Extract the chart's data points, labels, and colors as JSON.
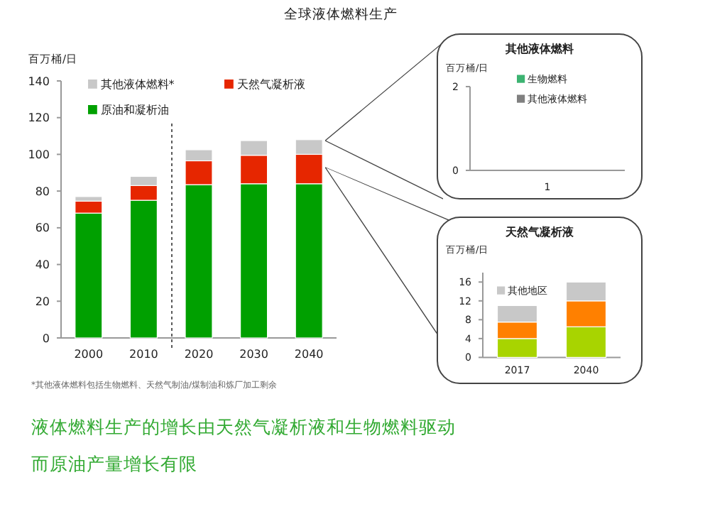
{
  "chart_data": [
    {
      "type": "bar",
      "stacked": true,
      "title": "全球液体燃料生产",
      "ylabel": "百万桶/日",
      "categories": [
        "2000",
        "2010",
        "2020",
        "2030",
        "2040"
      ],
      "series": [
        {
          "name": "原油和凝析油",
          "color": "#00a000",
          "values": [
            68,
            75,
            83.5,
            84,
            84
          ]
        },
        {
          "name": "天然气凝析液",
          "color": "#e62600",
          "values": [
            6.5,
            8,
            13,
            15.5,
            16
          ]
        },
        {
          "name": "其他液体燃料*",
          "color": "#c8c8c8",
          "values": [
            2.5,
            5,
            6,
            8,
            8
          ]
        }
      ],
      "ylim": [
        0,
        140
      ],
      "yticks": [
        0,
        20,
        40,
        60,
        80,
        100,
        120,
        140
      ],
      "legend": "top left",
      "annotations": [
        "*其他液体燃料包括生物燃料、天然气制油/煤制油和炼厂加工剩余",
        "液体燃料生产的增长由天然气凝析液和生物燃料驱动",
        "而原油产量增长有限"
      ]
    },
    {
      "type": "bar",
      "title": "其他液体燃料",
      "ylabel": "百万桶/日",
      "categories": [
        "1"
      ],
      "series": [
        {
          "name": "生物燃料",
          "color": "#3cb371",
          "values": [
            null
          ]
        },
        {
          "name": "其他液体燃料",
          "color": "#808080",
          "values": [
            null
          ]
        }
      ],
      "ylim": [
        0,
        2
      ],
      "yticks": [
        0,
        2
      ],
      "legend": "top"
    },
    {
      "type": "bar",
      "stacked": true,
      "title": "天然气凝析液",
      "ylabel": "百万桶/日",
      "categories": [
        "2017",
        "2040"
      ],
      "series": [
        {
          "color": "#a8d400",
          "values": [
            4,
            6.5
          ]
        },
        {
          "color": "#ff8000",
          "values": [
            3.5,
            5.5
          ]
        },
        {
          "name": "其他地区",
          "color": "#c8c8c8",
          "values": [
            3.5,
            4
          ]
        }
      ],
      "ylim": [
        0,
        18
      ],
      "yticks": [
        0,
        4,
        8,
        12,
        16
      ],
      "legend": "top left"
    }
  ]
}
